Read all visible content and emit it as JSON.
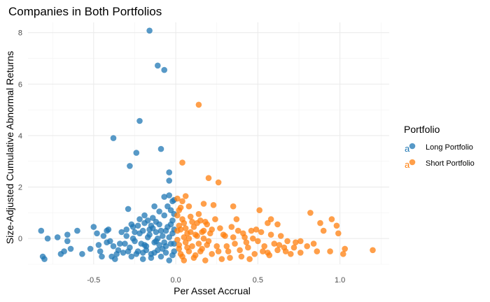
{
  "chart_data": {
    "type": "scatter",
    "title": "Companies in Both Portfolios",
    "xlabel": "Per Asset Accrual",
    "ylabel": "Size-Adjusted Cumulative Abnormal Returns",
    "xlim": [
      -0.9,
      1.3
    ],
    "ylim": [
      -1.0,
      8.4
    ],
    "x_ticks": [
      -0.5,
      0.0,
      0.5,
      1.0
    ],
    "x_tick_labels": [
      "-0.5",
      "0.0",
      "0.5",
      "1.0"
    ],
    "y_ticks": [
      0,
      2,
      4,
      6,
      8
    ],
    "y_tick_labels": [
      "0",
      "2",
      "4",
      "6",
      "8"
    ],
    "grid": true,
    "legend": {
      "title": "Portfolio",
      "position": "right"
    },
    "series": [
      {
        "name": "Long Portfolio",
        "color": "#1f77b4",
        "points": [
          [
            -0.16,
            8.08
          ],
          [
            -0.11,
            6.72
          ],
          [
            -0.07,
            6.55
          ],
          [
            -0.38,
            3.9
          ],
          [
            -0.22,
            4.57
          ],
          [
            -0.24,
            3.33
          ],
          [
            -0.28,
            2.82
          ],
          [
            -0.09,
            3.48
          ],
          [
            -0.04,
            2.57
          ],
          [
            -0.04,
            2.25
          ],
          [
            -0.07,
            1.62
          ],
          [
            -0.04,
            1.68
          ],
          [
            -0.29,
            1.15
          ],
          [
            -0.01,
            1.5
          ],
          [
            -0.13,
            1.25
          ],
          [
            -0.19,
            0.9
          ],
          [
            -0.22,
            0.75
          ],
          [
            -0.27,
            0.55
          ],
          [
            -0.5,
            0.45
          ],
          [
            -0.6,
            0.3
          ],
          [
            -0.66,
            0.15
          ],
          [
            -0.72,
            0.05
          ],
          [
            -0.82,
            0.3
          ],
          [
            -0.78,
            0.0
          ],
          [
            -0.81,
            -0.7
          ],
          [
            -0.8,
            -0.8
          ],
          [
            -0.7,
            -0.6
          ],
          [
            -0.68,
            -0.5
          ],
          [
            -0.64,
            -0.4
          ],
          [
            -0.66,
            -0.1
          ],
          [
            -0.57,
            -0.6
          ],
          [
            -0.52,
            -0.4
          ],
          [
            -0.47,
            -0.25
          ],
          [
            -0.46,
            -0.5
          ],
          [
            -0.44,
            0.1
          ],
          [
            -0.42,
            -0.15
          ],
          [
            -0.42,
            0.3
          ],
          [
            -0.4,
            -0.1
          ],
          [
            -0.38,
            -0.3
          ],
          [
            -0.36,
            -0.6
          ],
          [
            -0.37,
            -0.8
          ],
          [
            -0.34,
            -0.2
          ],
          [
            -0.32,
            -0.55
          ],
          [
            -0.3,
            0.1
          ],
          [
            -0.3,
            0.35
          ],
          [
            -0.28,
            -0.35
          ],
          [
            -0.27,
            -0.7
          ],
          [
            -0.26,
            0.45
          ],
          [
            -0.25,
            -0.1
          ],
          [
            -0.23,
            -0.5
          ],
          [
            -0.22,
            0.2
          ],
          [
            -0.2,
            -0.8
          ],
          [
            -0.19,
            0.6
          ],
          [
            -0.18,
            -0.3
          ],
          [
            -0.17,
            0.05
          ],
          [
            -0.16,
            0.35
          ],
          [
            -0.15,
            -0.6
          ],
          [
            -0.14,
            0.8
          ],
          [
            -0.13,
            -0.15
          ],
          [
            -0.12,
            0.25
          ],
          [
            -0.11,
            -0.45
          ],
          [
            -0.1,
            0.55
          ],
          [
            -0.09,
            -0.7
          ],
          [
            -0.08,
            0.1
          ],
          [
            -0.07,
            0.9
          ],
          [
            -0.06,
            -0.3
          ],
          [
            -0.05,
            0.45
          ],
          [
            -0.04,
            -0.85
          ],
          [
            -0.03,
            1.1
          ],
          [
            -0.02,
            0.2
          ],
          [
            -0.01,
            -0.5
          ],
          [
            -0.02,
            0.7
          ],
          [
            -0.03,
            -0.2
          ],
          [
            -0.05,
            1.25
          ],
          [
            -0.06,
            0.3
          ],
          [
            -0.08,
            -0.4
          ],
          [
            -0.1,
            1.05
          ],
          [
            -0.12,
            -0.1
          ],
          [
            -0.14,
            0.4
          ],
          [
            -0.15,
            -0.75
          ],
          [
            -0.17,
            0.7
          ],
          [
            -0.18,
            -0.45
          ],
          [
            -0.2,
            0.3
          ],
          [
            -0.21,
            -0.2
          ],
          [
            -0.23,
            0.5
          ],
          [
            -0.24,
            -0.6
          ],
          [
            -0.26,
            0.0
          ],
          [
            -0.29,
            -0.5
          ],
          [
            -0.31,
            -0.2
          ],
          [
            -0.33,
            0.25
          ],
          [
            -0.35,
            -0.45
          ],
          [
            -0.39,
            -0.7
          ],
          [
            -0.41,
            0.35
          ],
          [
            -0.45,
            -0.7
          ],
          [
            -0.48,
            0.2
          ],
          [
            -0.01,
            0.95
          ],
          [
            -0.02,
            -0.65
          ],
          [
            -0.04,
            0.05
          ],
          [
            -0.06,
            -0.55
          ],
          [
            -0.09,
            0.3
          ],
          [
            -0.11,
            0.0
          ],
          [
            -0.13,
            -0.55
          ],
          [
            -0.16,
            0.15
          ],
          [
            -0.19,
            -0.25
          ],
          [
            -0.01,
            0.35
          ],
          [
            -0.03,
            0.55
          ],
          [
            -0.07,
            -0.15
          ],
          [
            -0.1,
            -0.25
          ],
          [
            -0.12,
            0.65
          ],
          [
            -0.15,
            0.5
          ],
          [
            -0.2,
            -0.55
          ],
          [
            -0.25,
            0.25
          ],
          [
            -0.01,
            -0.2
          ],
          [
            -0.02,
            1.45
          ]
        ]
      },
      {
        "name": "Short Portfolio",
        "color": "#ff7f0e",
        "points": [
          [
            0.14,
            5.2
          ],
          [
            0.04,
            2.95
          ],
          [
            0.2,
            2.35
          ],
          [
            0.26,
            2.18
          ],
          [
            0.06,
            1.65
          ],
          [
            0.04,
            1.45
          ],
          [
            0.02,
            1.1
          ],
          [
            0.08,
            1.25
          ],
          [
            0.14,
            0.95
          ],
          [
            0.17,
            1.35
          ],
          [
            0.23,
            1.3
          ],
          [
            0.35,
            1.25
          ],
          [
            0.37,
            0.75
          ],
          [
            0.51,
            1.1
          ],
          [
            0.56,
            0.6
          ],
          [
            0.58,
            0.75
          ],
          [
            0.62,
            0.55
          ],
          [
            0.82,
            1.0
          ],
          [
            0.88,
            0.6
          ],
          [
            0.9,
            0.3
          ],
          [
            0.95,
            0.75
          ],
          [
            0.98,
            0.5
          ],
          [
            0.99,
            0.2
          ],
          [
            0.94,
            -0.5
          ],
          [
            1.03,
            -0.4
          ],
          [
            1.2,
            -0.45
          ],
          [
            1.02,
            -0.6
          ],
          [
            0.86,
            -0.5
          ],
          [
            0.84,
            -0.2
          ],
          [
            0.8,
            -0.3
          ],
          [
            0.76,
            -0.1
          ],
          [
            0.76,
            -0.55
          ],
          [
            0.72,
            -0.35
          ],
          [
            0.7,
            -0.6
          ],
          [
            0.68,
            -0.1
          ],
          [
            0.66,
            -0.35
          ],
          [
            0.64,
            0.1
          ],
          [
            0.62,
            -0.45
          ],
          [
            0.6,
            -0.2
          ],
          [
            0.58,
            0.15
          ],
          [
            0.56,
            -0.55
          ],
          [
            0.54,
            -0.3
          ],
          [
            0.52,
            0.25
          ],
          [
            0.5,
            -0.1
          ],
          [
            0.48,
            -0.6
          ],
          [
            0.46,
            0.3
          ],
          [
            0.44,
            -0.35
          ],
          [
            0.42,
            0.05
          ],
          [
            0.4,
            -0.7
          ],
          [
            0.38,
            0.3
          ],
          [
            0.36,
            -0.2
          ],
          [
            0.34,
            0.45
          ],
          [
            0.32,
            -0.5
          ],
          [
            0.3,
            0.1
          ],
          [
            0.28,
            -0.8
          ],
          [
            0.27,
            0.4
          ],
          [
            0.25,
            -0.3
          ],
          [
            0.24,
            0.75
          ],
          [
            0.22,
            -0.6
          ],
          [
            0.21,
            0.2
          ],
          [
            0.2,
            -0.1
          ],
          [
            0.19,
            0.55
          ],
          [
            0.18,
            -0.85
          ],
          [
            0.17,
            0.3
          ],
          [
            0.16,
            -0.4
          ],
          [
            0.15,
            0.7
          ],
          [
            0.14,
            -0.2
          ],
          [
            0.13,
            0.1
          ],
          [
            0.12,
            -0.65
          ],
          [
            0.11,
            0.45
          ],
          [
            0.1,
            -0.3
          ],
          [
            0.09,
            0.85
          ],
          [
            0.08,
            -0.5
          ],
          [
            0.07,
            0.2
          ],
          [
            0.06,
            -0.15
          ],
          [
            0.05,
            0.6
          ],
          [
            0.04,
            -0.7
          ],
          [
            0.03,
            0.35
          ],
          [
            0.02,
            -0.4
          ],
          [
            0.01,
            0.9
          ],
          [
            0.01,
            -0.05
          ],
          [
            0.02,
            0.5
          ],
          [
            0.03,
            -0.6
          ],
          [
            0.05,
            0.05
          ],
          [
            0.07,
            -0.35
          ],
          [
            0.09,
            0.25
          ],
          [
            0.11,
            -0.75
          ],
          [
            0.13,
            0.6
          ],
          [
            0.15,
            -0.5
          ],
          [
            0.17,
            0.0
          ],
          [
            0.19,
            -0.25
          ],
          [
            0.22,
            0.35
          ],
          [
            0.26,
            -0.5
          ],
          [
            0.29,
            0.15
          ],
          [
            0.31,
            -0.3
          ],
          [
            0.33,
            -0.75
          ],
          [
            0.35,
            0.05
          ],
          [
            0.39,
            -0.45
          ],
          [
            0.41,
            0.2
          ],
          [
            0.43,
            -0.15
          ],
          [
            0.45,
            -0.8
          ],
          [
            0.47,
            0.0
          ],
          [
            0.49,
            0.35
          ],
          [
            0.53,
            -0.5
          ],
          [
            0.57,
            -0.65
          ],
          [
            0.63,
            -0.25
          ],
          [
            0.67,
            -0.5
          ],
          [
            0.73,
            -0.15
          ],
          [
            0.01,
            0.3
          ],
          [
            0.02,
            -0.25
          ],
          [
            0.04,
            0.75
          ],
          [
            0.06,
            0.4
          ],
          [
            0.08,
            0.0
          ],
          [
            0.1,
            0.65
          ],
          [
            0.12,
            0.15
          ],
          [
            0.03,
            1.2
          ],
          [
            0.05,
            -0.85
          ],
          [
            0.16,
            0.25
          ],
          [
            0.18,
            0.65
          ],
          [
            0.01,
            1.55
          ]
        ]
      }
    ]
  }
}
